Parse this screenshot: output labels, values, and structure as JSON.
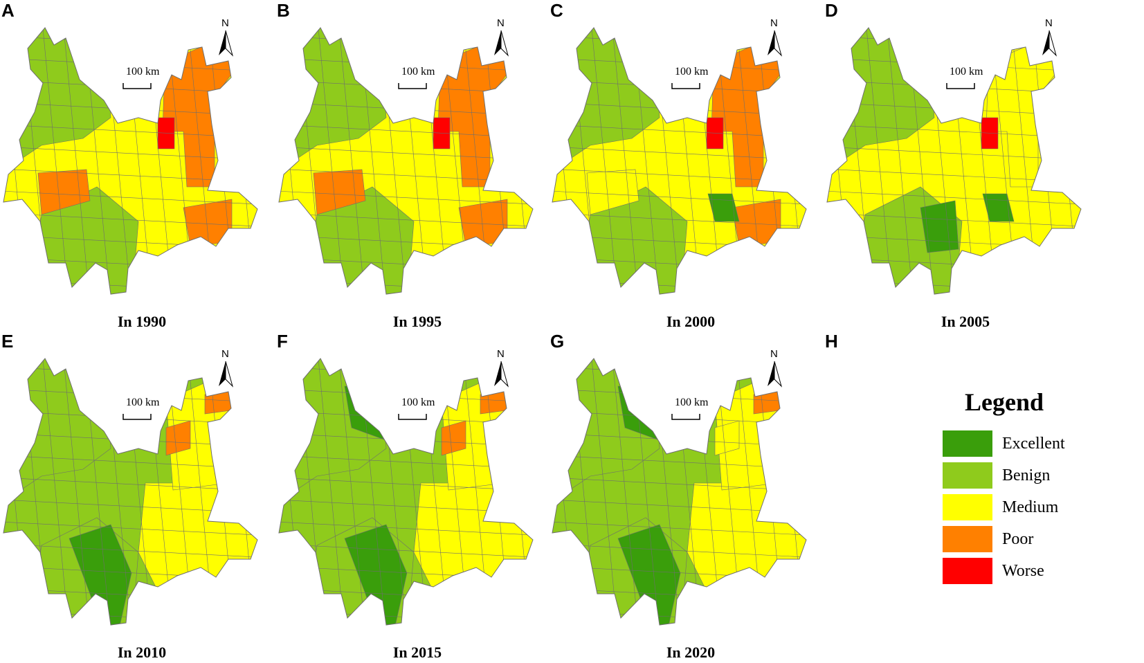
{
  "colors": {
    "excellent": "#3a9e0b",
    "benign": "#8fcb1c",
    "medium": "#ffff00",
    "poor": "#ff8000",
    "worse": "#ff0000",
    "border": "#6e6e6e"
  },
  "scale_bar_label": "100 km",
  "north_label": "N",
  "panels": [
    {
      "letter": "A",
      "caption": "In 1990"
    },
    {
      "letter": "B",
      "caption": "In 1995"
    },
    {
      "letter": "C",
      "caption": "In 2000"
    },
    {
      "letter": "D",
      "caption": "In 2005"
    },
    {
      "letter": "E",
      "caption": "In 2010"
    },
    {
      "letter": "F",
      "caption": "In 2015"
    },
    {
      "letter": "G",
      "caption": "In 2020"
    },
    {
      "letter": "H",
      "caption": ""
    }
  ],
  "legend": {
    "title": "Legend",
    "items": [
      {
        "label": "Excellent",
        "color": "#3a9e0b"
      },
      {
        "label": "Benign",
        "color": "#8fcb1c"
      },
      {
        "label": "Medium",
        "color": "#ffff00"
      },
      {
        "label": "Poor",
        "color": "#ff8000"
      },
      {
        "label": "Worse",
        "color": "#ff0000"
      }
    ]
  }
}
